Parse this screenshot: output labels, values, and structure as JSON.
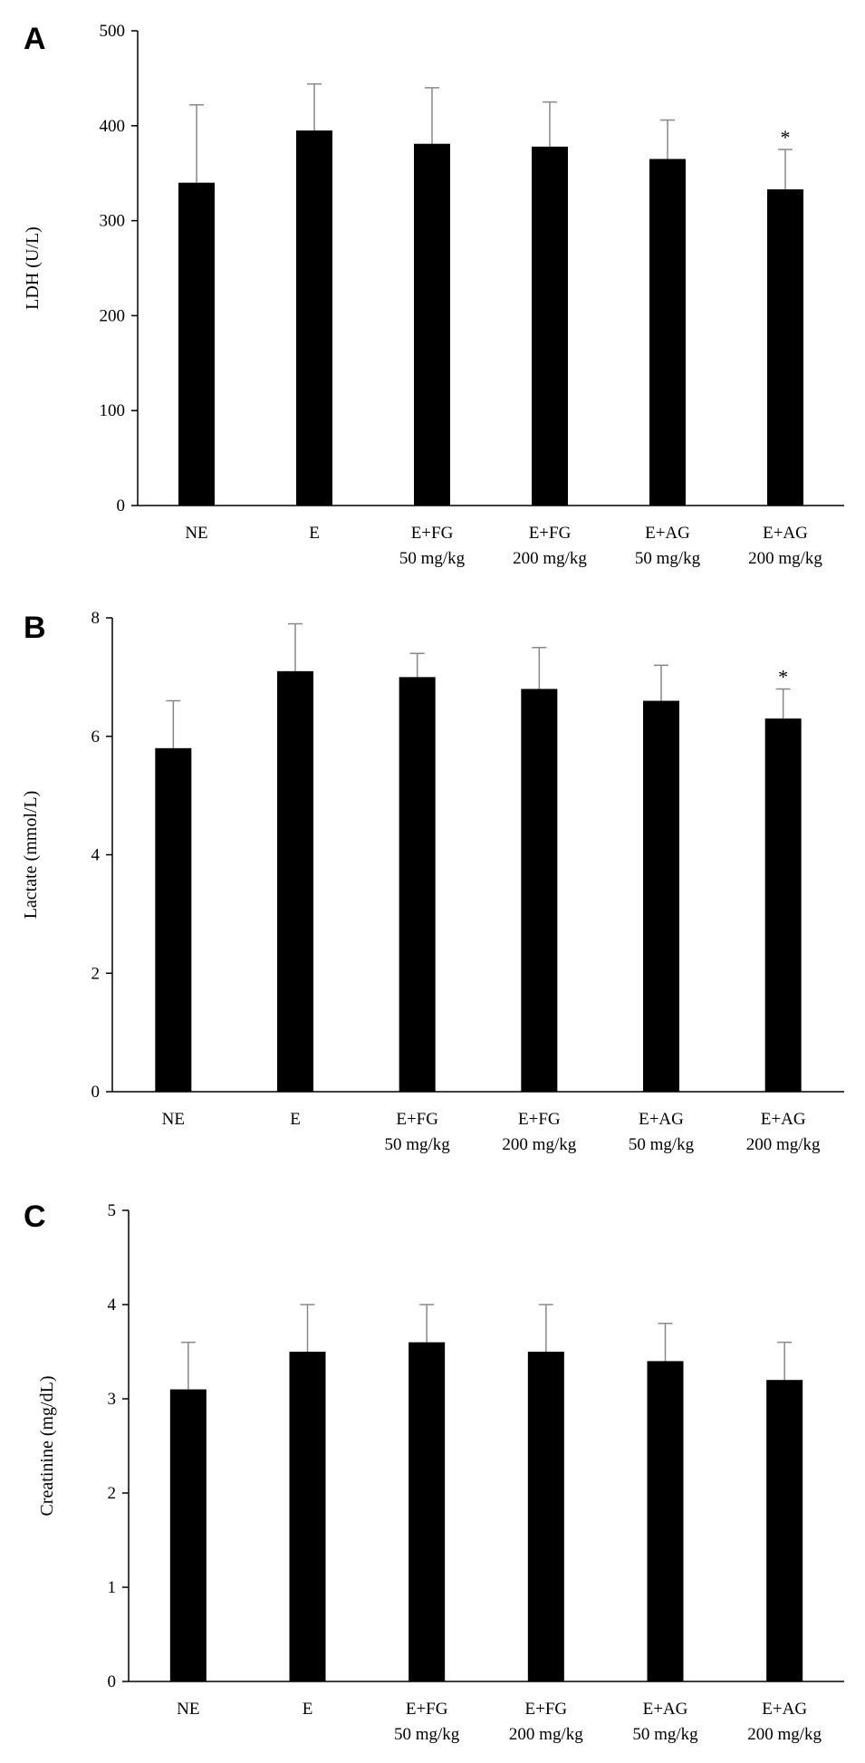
{
  "colors": {
    "bar": "#000000",
    "axis": "#000000",
    "error_bar": "#888888"
  },
  "chart_data": [
    {
      "type": "bar",
      "panel_label": "A",
      "ylabel": "LDH (U/L)",
      "xlabel": "",
      "ylim": [
        0,
        500
      ],
      "yticks": [
        0,
        100,
        200,
        300,
        400,
        500
      ],
      "grid": false,
      "categories": [
        [
          "NE"
        ],
        [
          "E"
        ],
        [
          "E+FG",
          "50 mg/kg"
        ],
        [
          "E+FG",
          "200 mg/kg"
        ],
        [
          "E+AG",
          "50 mg/kg"
        ],
        [
          "E+AG",
          "200 mg/kg"
        ]
      ],
      "values": [
        340,
        395,
        381,
        378,
        365,
        333
      ],
      "errors": [
        82,
        49,
        59,
        47,
        41,
        42
      ],
      "annotations": [
        "",
        "",
        "",
        "",
        "",
        "*"
      ]
    },
    {
      "type": "bar",
      "panel_label": "B",
      "ylabel": "Lactate (mmol/L)",
      "xlabel": "",
      "ylim": [
        0,
        8
      ],
      "yticks": [
        0,
        2,
        4,
        6,
        8
      ],
      "grid": false,
      "categories": [
        [
          "NE"
        ],
        [
          "E"
        ],
        [
          "E+FG",
          "50 mg/kg"
        ],
        [
          "E+FG",
          "200 mg/kg"
        ],
        [
          "E+AG",
          "50 mg/kg"
        ],
        [
          "E+AG",
          "200 mg/kg"
        ]
      ],
      "values": [
        5.8,
        7.1,
        7.0,
        6.8,
        6.6,
        6.3
      ],
      "errors": [
        0.8,
        0.8,
        0.4,
        0.7,
        0.6,
        0.5
      ],
      "annotations": [
        "",
        "",
        "",
        "",
        "",
        "*"
      ]
    },
    {
      "type": "bar",
      "panel_label": "C",
      "ylabel": "Creatinine (mg/dL)",
      "xlabel": "",
      "ylim": [
        0,
        5
      ],
      "yticks": [
        0,
        1,
        2,
        3,
        4,
        5
      ],
      "grid": false,
      "categories": [
        [
          "NE"
        ],
        [
          "E"
        ],
        [
          "E+FG",
          "50 mg/kg"
        ],
        [
          "E+FG",
          "200 mg/kg"
        ],
        [
          "E+AG",
          "50 mg/kg"
        ],
        [
          "E+AG",
          "200 mg/kg"
        ]
      ],
      "values": [
        3.1,
        3.5,
        3.6,
        3.5,
        3.4,
        3.2
      ],
      "errors": [
        0.5,
        0.5,
        0.4,
        0.5,
        0.4,
        0.4
      ],
      "annotations": [
        "",
        "",
        "",
        "",
        "",
        ""
      ]
    }
  ]
}
